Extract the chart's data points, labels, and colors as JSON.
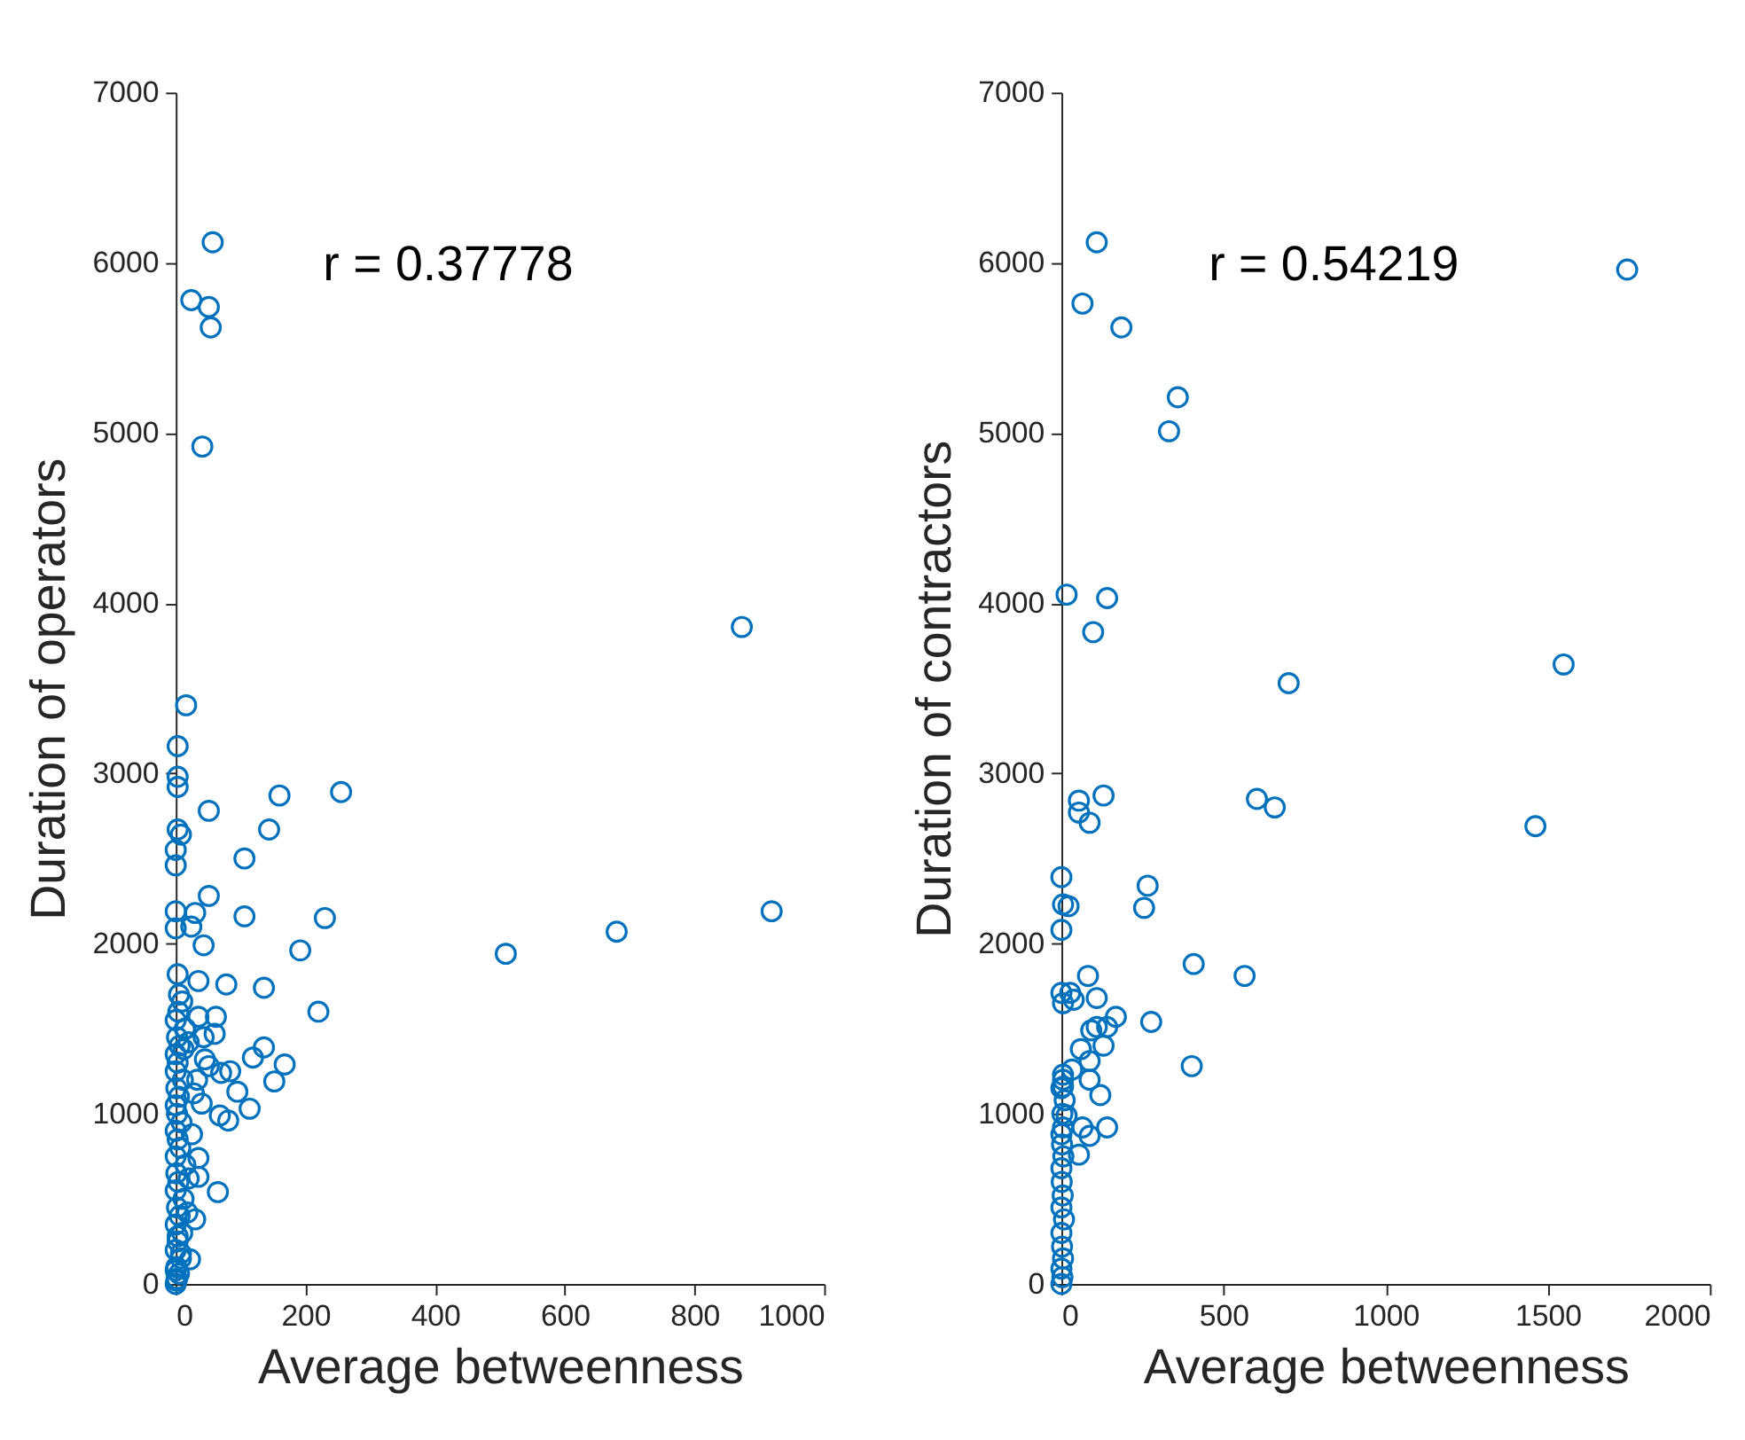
{
  "chart_data": [
    {
      "type": "scatter",
      "xlabel": "Average betweenness",
      "ylabel": "Duration of operators",
      "annotations": [
        "r = 0.37778"
      ],
      "xlim": [
        0,
        1000
      ],
      "ylim": [
        0,
        7000
      ],
      "xticks": [
        0,
        200,
        400,
        600,
        800,
        1000
      ],
      "yticks": [
        0,
        1000,
        2000,
        3000,
        4000,
        5000,
        6000,
        7000
      ],
      "grid": false,
      "marker": "circle",
      "series": [
        {
          "color": "#0072bd",
          "x": [
            57,
            24,
            51,
            54,
            41,
            16,
            873,
            919,
            680,
            509,
            255,
            160,
            144,
            51,
            106,
            51,
            230,
            192,
            220,
            106,
            136,
            78,
            168,
            152,
            136,
            119,
            114,
            65,
            95,
            81,
            68,
            62,
            60,
            35,
            43,
            30,
            24,
            8,
            3,
            3,
            3,
            3,
            0,
            0,
            0,
            0,
            3,
            35,
            43,
            51,
            70,
            84,
            30,
            22,
            35,
            35,
            0,
            2,
            5,
            1,
            8,
            0,
            3,
            10,
            0,
            6,
            2,
            12,
            0,
            4,
            1,
            15,
            0,
            7,
            3,
            0,
            9,
            2,
            0,
            5,
            1,
            11,
            0,
            3,
            0,
            6,
            2,
            14,
            0,
            4,
            1,
            0,
            8,
            3,
            18,
            20,
            25,
            28,
            12,
            40,
            33,
            45,
            20,
            15,
            10,
            5
          ],
          "values": [
            6120,
            5780,
            5740,
            5620,
            4920,
            3400,
            3860,
            2190,
            2070,
            1940,
            2890,
            2870,
            2670,
            2780,
            2500,
            2280,
            2150,
            1960,
            1600,
            2160,
            1740,
            1760,
            1290,
            1190,
            1390,
            1330,
            1030,
            540,
            1130,
            960,
            990,
            1570,
            1470,
            1780,
            1990,
            2180,
            2100,
            2640,
            2670,
            2980,
            2920,
            3160,
            2550,
            2460,
            2190,
            2090,
            1820,
            1570,
            1450,
            1280,
            1240,
            1250,
            380,
            145,
            740,
            630,
            0,
            30,
            60,
            100,
            150,
            200,
            250,
            300,
            350,
            400,
            450,
            500,
            550,
            600,
            650,
            700,
            750,
            800,
            850,
            900,
            950,
            1000,
            1050,
            1100,
            1150,
            1200,
            1250,
            1300,
            1350,
            1400,
            1450,
            1500,
            1550,
            1600,
            20,
            80,
            180,
            280,
            420,
            620,
            880,
            1120,
            1380,
            1060,
            1200,
            1320,
            1420,
            1500,
            1660,
            1700
          ]
        }
      ]
    },
    {
      "type": "scatter",
      "xlabel": "Average betweenness",
      "ylabel": "Duration of contractors",
      "annotations": [
        "r = 0.54219"
      ],
      "xlim": [
        0,
        2000
      ],
      "ylim": [
        0,
        7000
      ],
      "xticks": [
        0,
        500,
        1000,
        1500,
        2000
      ],
      "yticks": [
        0,
        1000,
        2000,
        3000,
        4000,
        5000,
        6000,
        7000
      ],
      "grid": false,
      "marker": "circle",
      "series": [
        {
          "color": "#0072bd",
          "x": [
            109,
            65,
            185,
            359,
            332,
            1745,
            16,
            141,
            98,
            701,
            1549,
            1462,
            603,
            658,
            54,
            54,
            87,
            130,
            266,
            255,
            408,
            565,
            277,
            402,
            0,
            5,
            22,
            0,
            82,
            0,
            27,
            5,
            38,
            109,
            168,
            141,
            92,
            109,
            130,
            60,
            87,
            87,
            120,
            141,
            65,
            87,
            54,
            33,
            5,
            5,
            16,
            5,
            0,
            3,
            0,
            5,
            2,
            0,
            8,
            0,
            4,
            1,
            0,
            6,
            2,
            0,
            3,
            10,
            0,
            5
          ],
          "values": [
            6120,
            5760,
            5620,
            5210,
            5010,
            5960,
            4050,
            4030,
            3830,
            3530,
            3640,
            2690,
            2850,
            2800,
            2840,
            2770,
            2710,
            2870,
            2340,
            2210,
            1880,
            1810,
            1540,
            1280,
            2390,
            2230,
            2220,
            2080,
            1810,
            1710,
            1710,
            1650,
            1670,
            1680,
            1570,
            1510,
            1490,
            1510,
            1400,
            1380,
            1310,
            1200,
            1110,
            920,
            920,
            870,
            760,
            1260,
            1230,
            1160,
            990,
            920,
            0,
            40,
            90,
            150,
            220,
            300,
            380,
            450,
            520,
            600,
            680,
            750,
            820,
            880,
            1000,
            1080,
            1150,
            1200
          ]
        }
      ]
    }
  ]
}
